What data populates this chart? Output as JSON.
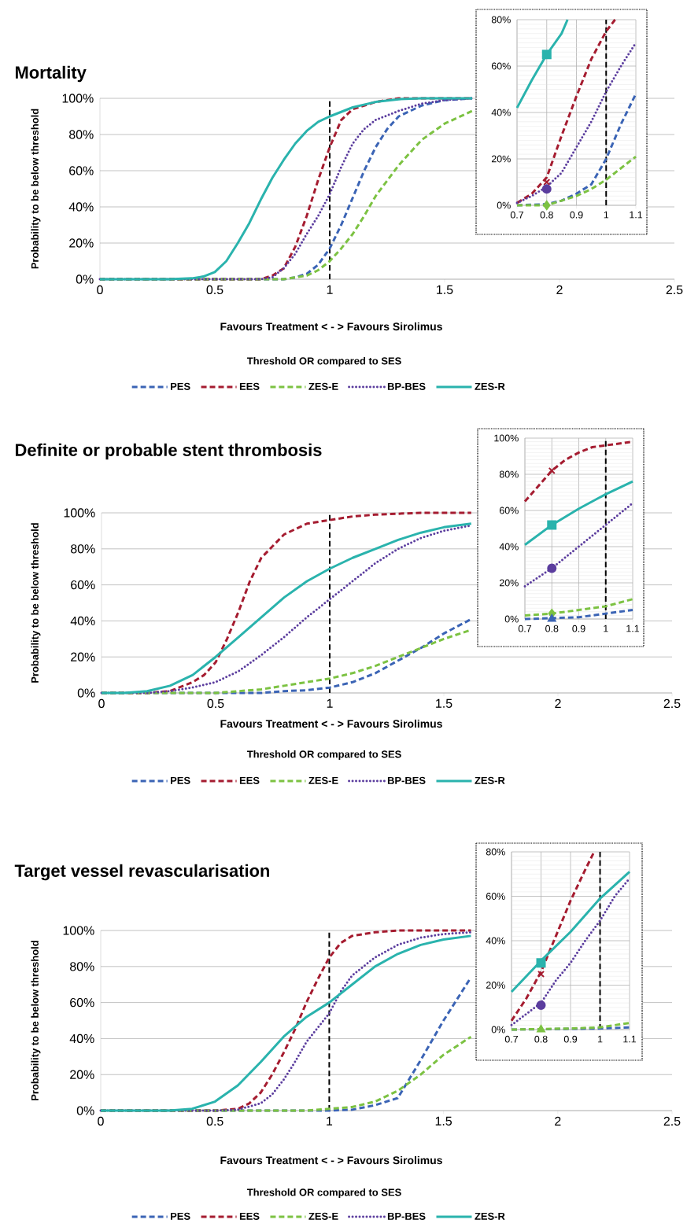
{
  "chart_data": [
    {
      "type": "line",
      "title": "Mortality",
      "xlabel": "Favours Treatment < - > Favours Sirolimus",
      "ylabel": "Probability to be below threshold",
      "annotations": [
        "Threshold OR compared to SES"
      ],
      "xlim": [
        0,
        2.5
      ],
      "ylim": [
        0,
        100
      ],
      "xticks": [
        0,
        0.5,
        1,
        1.5,
        2,
        2.5
      ],
      "yticks": [
        {
          "value": 0,
          "label": "0%"
        },
        {
          "value": 20,
          "label": "20%"
        },
        {
          "value": 40,
          "label": "40%"
        },
        {
          "value": 60,
          "label": "60%"
        },
        {
          "value": 80,
          "label": "80%"
        },
        {
          "value": 100,
          "label": "100%"
        }
      ],
      "grid": "y",
      "legend": "bottom",
      "ref_lines": [
        {
          "axis": "x",
          "value": 1,
          "color": "#000000",
          "line_style": "dashed"
        }
      ],
      "series": [
        {
          "name": "PES",
          "color": "#3b64b5",
          "line_style": "dashed",
          "x": [
            0,
            0.8,
            0.85,
            0.9,
            0.95,
            1.0,
            1.05,
            1.1,
            1.15,
            1.2,
            1.25,
            1.3,
            1.4,
            1.5,
            1.62
          ],
          "values": [
            0,
            0,
            1,
            3,
            8,
            17,
            30,
            45,
            60,
            73,
            83,
            90,
            96,
            99,
            100
          ]
        },
        {
          "name": "EES",
          "color": "#a51c30",
          "line_style": "dashed",
          "x": [
            0,
            0.7,
            0.75,
            0.8,
            0.85,
            0.9,
            0.95,
            1.0,
            1.05,
            1.1,
            1.2,
            1.3,
            1.62
          ],
          "values": [
            0,
            0,
            2,
            6,
            18,
            35,
            55,
            73,
            88,
            94,
            98,
            100,
            100
          ]
        },
        {
          "name": "ZES-E",
          "color": "#7cc242",
          "line_style": "dashed",
          "x": [
            0,
            0.8,
            0.9,
            0.95,
            1.0,
            1.05,
            1.1,
            1.15,
            1.2,
            1.3,
            1.4,
            1.5,
            1.62
          ],
          "values": [
            0,
            0,
            2,
            5,
            10,
            17,
            25,
            35,
            46,
            63,
            77,
            86,
            93
          ]
        },
        {
          "name": "BP-BES",
          "color": "#5b3d9e",
          "line_style": "dotted",
          "x": [
            0,
            0.7,
            0.75,
            0.8,
            0.85,
            0.9,
            0.95,
            1.0,
            1.05,
            1.1,
            1.15,
            1.2,
            1.3,
            1.4,
            1.5,
            1.62
          ],
          "values": [
            0,
            0,
            1,
            6,
            14,
            25,
            35,
            47,
            62,
            75,
            83,
            88,
            93,
            97,
            99,
            100
          ]
        },
        {
          "name": "ZES-R",
          "color": "#2ab3ad",
          "line_style": "solid",
          "x": [
            0,
            0.3,
            0.4,
            0.45,
            0.5,
            0.55,
            0.6,
            0.65,
            0.7,
            0.75,
            0.8,
            0.85,
            0.9,
            0.95,
            1.0,
            1.1,
            1.2,
            1.3,
            1.4,
            1.62
          ],
          "values": [
            0,
            0,
            0.5,
            1.5,
            4,
            10,
            20,
            31,
            44,
            56,
            66,
            75,
            82,
            87,
            90,
            95,
            98,
            99.5,
            100,
            100
          ]
        }
      ]
    },
    {
      "type": "line",
      "xlim": [
        0.7,
        1.1
      ],
      "ylim": [
        0,
        80
      ],
      "xticks": [
        0.7,
        0.8,
        0.9,
        1,
        1.1
      ],
      "yticks": [
        {
          "value": 0,
          "label": "0%"
        },
        {
          "value": 20,
          "label": "20%"
        },
        {
          "value": 40,
          "label": "40%"
        },
        {
          "value": 60,
          "label": "60%"
        },
        {
          "value": 80,
          "label": "80%"
        }
      ],
      "grid": true,
      "ref_lines": [
        {
          "axis": "x",
          "value": 1,
          "color": "#000000",
          "line_style": "dashed"
        }
      ],
      "series": [
        {
          "color": "#3b64b5",
          "line_style": "dashed",
          "x": [
            0.7,
            0.8,
            0.85,
            0.9,
            0.95,
            1.0,
            1.05,
            1.1
          ],
          "values": [
            0,
            0.5,
            2,
            5,
            9,
            20,
            35,
            48
          ]
        },
        {
          "color": "#a51c30",
          "line_style": "dashed",
          "x": [
            0.7,
            0.75,
            0.8,
            0.85,
            0.9,
            0.95,
            1.0,
            1.03
          ],
          "values": [
            1,
            5,
            12,
            30,
            47,
            63,
            75,
            80
          ]
        },
        {
          "color": "#7cc242",
          "line_style": "dashed",
          "x": [
            0.7,
            0.8,
            0.85,
            0.9,
            0.95,
            1.0,
            1.05,
            1.1
          ],
          "values": [
            0,
            0,
            2,
            4,
            7,
            11,
            16,
            21
          ]
        },
        {
          "color": "#5b3d9e",
          "line_style": "dotted",
          "x": [
            0.7,
            0.75,
            0.8,
            0.85,
            0.9,
            0.95,
            1.0,
            1.05,
            1.1
          ],
          "values": [
            1,
            4,
            8,
            14,
            25,
            36,
            49,
            60,
            70
          ]
        },
        {
          "color": "#2ab3ad",
          "line_style": "solid",
          "x": [
            0.7,
            0.75,
            0.8,
            0.85,
            0.87
          ],
          "values": [
            42,
            54,
            65,
            74,
            80
          ]
        },
        {
          "type": "scatter",
          "color": "#2ab3ad",
          "marker": "square",
          "x": [
            0.8
          ],
          "values": [
            65
          ]
        },
        {
          "type": "scatter",
          "color": "#a51c30",
          "marker": "cross",
          "x": [
            0.8
          ],
          "values": [
            10
          ]
        },
        {
          "type": "scatter",
          "color": "#5b3d9e",
          "marker": "circle",
          "x": [
            0.8
          ],
          "values": [
            7
          ]
        },
        {
          "type": "scatter",
          "color": "#7cc242",
          "marker": "diamond",
          "x": [
            0.8
          ],
          "values": [
            0
          ]
        }
      ]
    },
    {
      "type": "line",
      "title": "Definite or probable stent thrombosis",
      "xlabel": "Favours Treatment < - > Favours Sirolimus",
      "ylabel": "Probability to be below threshold",
      "annotations": [
        "Threshold OR compared to SES"
      ],
      "xlim": [
        0,
        2.5
      ],
      "ylim": [
        0,
        100
      ],
      "xticks": [
        0,
        0.5,
        1,
        1.5,
        2,
        2.5
      ],
      "yticks": [
        {
          "value": 0,
          "label": "0%"
        },
        {
          "value": 20,
          "label": "20%"
        },
        {
          "value": 40,
          "label": "40%"
        },
        {
          "value": 60,
          "label": "60%"
        },
        {
          "value": 80,
          "label": "80%"
        },
        {
          "value": 100,
          "label": "100%"
        }
      ],
      "grid": "y",
      "legend": "bottom",
      "ref_lines": [
        {
          "axis": "x",
          "value": 1,
          "color": "#000000",
          "line_style": "dashed"
        }
      ],
      "series": [
        {
          "name": "PES",
          "color": "#3b64b5",
          "line_style": "dashed",
          "x": [
            0,
            0.3,
            0.7,
            0.8,
            0.9,
            1.0,
            1.1,
            1.2,
            1.3,
            1.4,
            1.5,
            1.62
          ],
          "values": [
            0,
            0,
            0,
            1,
            1.5,
            3,
            6,
            11,
            18,
            25,
            33,
            41
          ]
        },
        {
          "name": "EES",
          "color": "#a51c30",
          "line_style": "dashed",
          "x": [
            0,
            0.2,
            0.3,
            0.4,
            0.45,
            0.5,
            0.55,
            0.6,
            0.65,
            0.7,
            0.8,
            0.9,
            1.0,
            1.1,
            1.2,
            1.4,
            1.62
          ],
          "values": [
            0,
            0,
            1,
            6,
            10,
            17,
            30,
            45,
            62,
            75,
            88,
            94,
            96,
            98,
            99,
            100,
            100
          ]
        },
        {
          "name": "ZES-E",
          "color": "#7cc242",
          "line_style": "dashed",
          "x": [
            0,
            0.3,
            0.5,
            0.6,
            0.7,
            0.8,
            0.9,
            1.0,
            1.1,
            1.2,
            1.3,
            1.4,
            1.5,
            1.62
          ],
          "values": [
            0,
            0,
            0,
            1,
            2,
            4,
            6,
            8,
            11,
            15,
            20,
            25,
            30,
            35
          ]
        },
        {
          "name": "BP-BES",
          "color": "#5b3d9e",
          "line_style": "dotted",
          "x": [
            0,
            0.2,
            0.3,
            0.4,
            0.5,
            0.6,
            0.7,
            0.8,
            0.9,
            1.0,
            1.1,
            1.2,
            1.3,
            1.4,
            1.5,
            1.62
          ],
          "values": [
            0,
            0,
            1,
            3,
            6,
            12,
            21,
            31,
            42,
            52,
            62,
            72,
            80,
            86,
            90,
            93
          ]
        },
        {
          "name": "ZES-R",
          "color": "#2ab3ad",
          "line_style": "solid",
          "x": [
            0,
            0.1,
            0.2,
            0.3,
            0.4,
            0.5,
            0.6,
            0.7,
            0.8,
            0.9,
            1.0,
            1.1,
            1.2,
            1.3,
            1.4,
            1.5,
            1.62
          ],
          "values": [
            0,
            0,
            1,
            4,
            10,
            20,
            31,
            42,
            53,
            62,
            69,
            75,
            80,
            85,
            89,
            92,
            94
          ]
        }
      ]
    },
    {
      "type": "line",
      "xlim": [
        0.7,
        1.1
      ],
      "ylim": [
        0,
        100
      ],
      "xticks": [
        0.7,
        0.8,
        0.9,
        1,
        1.1
      ],
      "yticks": [
        {
          "value": 0,
          "label": "0%"
        },
        {
          "value": 20,
          "label": "20%"
        },
        {
          "value": 40,
          "label": "40%"
        },
        {
          "value": 60,
          "label": "60%"
        },
        {
          "value": 80,
          "label": "80%"
        },
        {
          "value": 100,
          "label": "100%"
        }
      ],
      "grid": true,
      "ref_lines": [
        {
          "axis": "x",
          "value": 1,
          "color": "#000000",
          "line_style": "dashed"
        }
      ],
      "series": [
        {
          "color": "#3b64b5",
          "line_style": "dashed",
          "x": [
            0.7,
            0.8,
            0.9,
            1.0,
            1.1
          ],
          "values": [
            0,
            0.5,
            1,
            3,
            5
          ]
        },
        {
          "color": "#a51c30",
          "line_style": "dashed",
          "x": [
            0.7,
            0.8,
            0.85,
            0.9,
            0.95,
            1.0,
            1.1
          ],
          "values": [
            65,
            82,
            88,
            92,
            95,
            96,
            98
          ]
        },
        {
          "color": "#7cc242",
          "line_style": "dashed",
          "x": [
            0.7,
            0.8,
            0.9,
            1.0,
            1.1
          ],
          "values": [
            2,
            3,
            5,
            7,
            11
          ]
        },
        {
          "color": "#5b3d9e",
          "line_style": "dotted",
          "x": [
            0.7,
            0.8,
            0.9,
            1.0,
            1.1
          ],
          "values": [
            18,
            28,
            40,
            52,
            64
          ]
        },
        {
          "color": "#2ab3ad",
          "line_style": "solid",
          "x": [
            0.7,
            0.8,
            0.9,
            1.0,
            1.1
          ],
          "values": [
            41,
            52,
            61,
            69,
            76
          ]
        },
        {
          "type": "scatter",
          "color": "#a51c30",
          "marker": "cross",
          "x": [
            0.8
          ],
          "values": [
            82
          ]
        },
        {
          "type": "scatter",
          "color": "#2ab3ad",
          "marker": "square",
          "x": [
            0.8
          ],
          "values": [
            52
          ]
        },
        {
          "type": "scatter",
          "color": "#5b3d9e",
          "marker": "circle",
          "x": [
            0.8
          ],
          "values": [
            28
          ]
        },
        {
          "type": "scatter",
          "color": "#7cc242",
          "marker": "diamond",
          "x": [
            0.8
          ],
          "values": [
            3
          ]
        },
        {
          "type": "scatter",
          "color": "#3b64b5",
          "marker": "triangle",
          "x": [
            0.8
          ],
          "values": [
            0
          ]
        }
      ]
    },
    {
      "type": "line",
      "title": "Target vessel revascularisation",
      "xlabel": "Favours Treatment < - > Favours Sirolimus",
      "ylabel": "Probability to be below threshold",
      "annotations": [
        "Threshold OR compared to SES"
      ],
      "xlim": [
        0,
        2.5
      ],
      "ylim": [
        0,
        100
      ],
      "xticks": [
        0,
        0.5,
        1,
        1.5,
        2,
        2.5
      ],
      "yticks": [
        {
          "value": 0,
          "label": "0%"
        },
        {
          "value": 20,
          "label": "20%"
        },
        {
          "value": 40,
          "label": "40%"
        },
        {
          "value": 60,
          "label": "60%"
        },
        {
          "value": 80,
          "label": "80%"
        },
        {
          "value": 100,
          "label": "100%"
        }
      ],
      "grid": "y",
      "legend": "bottom",
      "ref_lines": [
        {
          "axis": "x",
          "value": 1,
          "color": "#000000",
          "line_style": "dashed"
        }
      ],
      "series": [
        {
          "name": "PES",
          "color": "#3b64b5",
          "line_style": "dashed",
          "x": [
            0,
            0.6,
            1.0,
            1.1,
            1.2,
            1.3,
            1.4,
            1.5,
            1.62
          ],
          "values": [
            0,
            0,
            0,
            0.5,
            3,
            7,
            28,
            50,
            74
          ]
        },
        {
          "name": "EES",
          "color": "#a51c30",
          "line_style": "dashed",
          "x": [
            0,
            0.5,
            0.6,
            0.65,
            0.7,
            0.75,
            0.8,
            0.85,
            0.9,
            0.95,
            1.0,
            1.05,
            1.1,
            1.2,
            1.3,
            1.62
          ],
          "values": [
            0,
            0,
            1,
            4,
            10,
            20,
            32,
            45,
            60,
            73,
            85,
            93,
            97,
            99,
            100,
            100
          ]
        },
        {
          "name": "ZES-E",
          "color": "#7cc242",
          "line_style": "dashed",
          "x": [
            0,
            0.6,
            0.9,
            1.0,
            1.1,
            1.2,
            1.3,
            1.4,
            1.5,
            1.62
          ],
          "values": [
            0,
            0,
            0,
            1,
            2,
            5,
            11,
            20,
            31,
            41
          ]
        },
        {
          "name": "BP-BES",
          "color": "#5b3d9e",
          "line_style": "dotted",
          "x": [
            0,
            0.5,
            0.6,
            0.7,
            0.75,
            0.8,
            0.85,
            0.9,
            0.95,
            1.0,
            1.05,
            1.1,
            1.2,
            1.3,
            1.4,
            1.5,
            1.62
          ],
          "values": [
            0,
            0,
            0.5,
            4,
            9,
            17,
            27,
            38,
            46,
            54,
            66,
            75,
            85,
            92,
            96,
            98,
            99
          ]
        },
        {
          "name": "ZES-R",
          "color": "#2ab3ad",
          "line_style": "solid",
          "x": [
            0,
            0.3,
            0.4,
            0.5,
            0.6,
            0.7,
            0.8,
            0.9,
            1.0,
            1.1,
            1.2,
            1.3,
            1.4,
            1.5,
            1.62
          ],
          "values": [
            0,
            0,
            1,
            5,
            14,
            27,
            41,
            52,
            60,
            70,
            80,
            87,
            92,
            95,
            97
          ]
        }
      ]
    },
    {
      "type": "line",
      "xlim": [
        0.7,
        1.1
      ],
      "ylim": [
        0,
        80
      ],
      "xticks": [
        0.7,
        0.8,
        0.9,
        1,
        1.1
      ],
      "yticks": [
        {
          "value": 0,
          "label": "0%"
        },
        {
          "value": 20,
          "label": "20%"
        },
        {
          "value": 40,
          "label": "40%"
        },
        {
          "value": 60,
          "label": "60%"
        },
        {
          "value": 80,
          "label": "80%"
        }
      ],
      "grid": true,
      "ref_lines": [
        {
          "axis": "x",
          "value": 1,
          "color": "#000000",
          "line_style": "dashed"
        }
      ],
      "series": [
        {
          "color": "#3b64b5",
          "line_style": "dashed",
          "x": [
            0.7,
            1.0,
            1.1
          ],
          "values": [
            0,
            0.5,
            1
          ]
        },
        {
          "color": "#a51c30",
          "line_style": "dashed",
          "x": [
            0.7,
            0.75,
            0.8,
            0.85,
            0.9,
            0.95,
            0.98
          ],
          "values": [
            4,
            14,
            26,
            42,
            58,
            72,
            80
          ]
        },
        {
          "color": "#7cc242",
          "line_style": "dashed",
          "x": [
            0.7,
            0.9,
            1.0,
            1.1
          ],
          "values": [
            0,
            0.5,
            1,
            3
          ]
        },
        {
          "color": "#5b3d9e",
          "line_style": "dotted",
          "x": [
            0.7,
            0.8,
            0.85,
            0.9,
            0.95,
            1.0,
            1.05,
            1.1
          ],
          "values": [
            2,
            12,
            22,
            30,
            40,
            49,
            60,
            68
          ]
        },
        {
          "color": "#2ab3ad",
          "line_style": "solid",
          "x": [
            0.7,
            0.8,
            0.9,
            1.0,
            1.1
          ],
          "values": [
            17,
            31,
            44,
            59,
            71
          ]
        },
        {
          "type": "scatter",
          "color": "#2ab3ad",
          "marker": "square",
          "x": [
            0.8
          ],
          "values": [
            30
          ]
        },
        {
          "type": "scatter",
          "color": "#a51c30",
          "marker": "cross",
          "x": [
            0.8
          ],
          "values": [
            25
          ]
        },
        {
          "type": "scatter",
          "color": "#5b3d9e",
          "marker": "circle",
          "x": [
            0.8
          ],
          "values": [
            11
          ]
        },
        {
          "type": "scatter",
          "color": "#7cc242",
          "marker": "triangle",
          "x": [
            0.8
          ],
          "values": [
            0
          ]
        }
      ]
    }
  ]
}
